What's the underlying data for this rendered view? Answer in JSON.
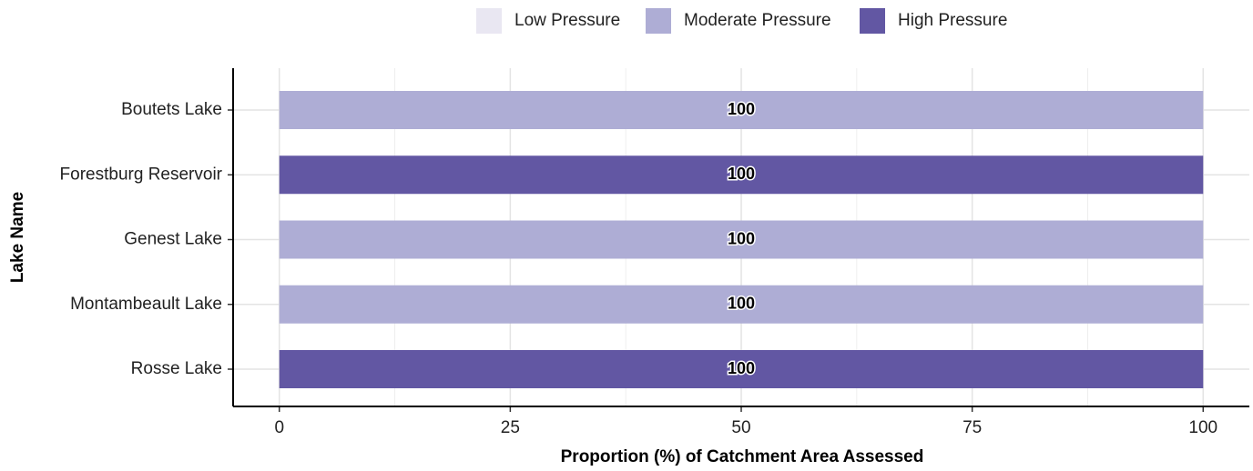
{
  "chart_data": {
    "type": "stacked_barh",
    "categories": [
      "Boutets Lake",
      "Forestburg Reservoir",
      "Genest Lake",
      "Montambeault Lake",
      "Rosse Lake"
    ],
    "series": [
      {
        "name": "Low Pressure",
        "color": "#e9e7f2",
        "values": [
          0,
          0,
          0,
          0,
          0
        ]
      },
      {
        "name": "Moderate Pressure",
        "color": "#aeadd5",
        "values": [
          100,
          0,
          100,
          100,
          0
        ]
      },
      {
        "name": "High Pressure",
        "color": "#6257a3",
        "values": [
          0,
          100,
          0,
          0,
          100
        ]
      }
    ],
    "xlabel": "Proportion (%) of Catchment Area Assessed",
    "ylabel": "Lake Name",
    "xlim": [
      -5,
      105
    ],
    "xticks": [
      0,
      25,
      50,
      75,
      100
    ],
    "grid": true,
    "legend": "top"
  }
}
